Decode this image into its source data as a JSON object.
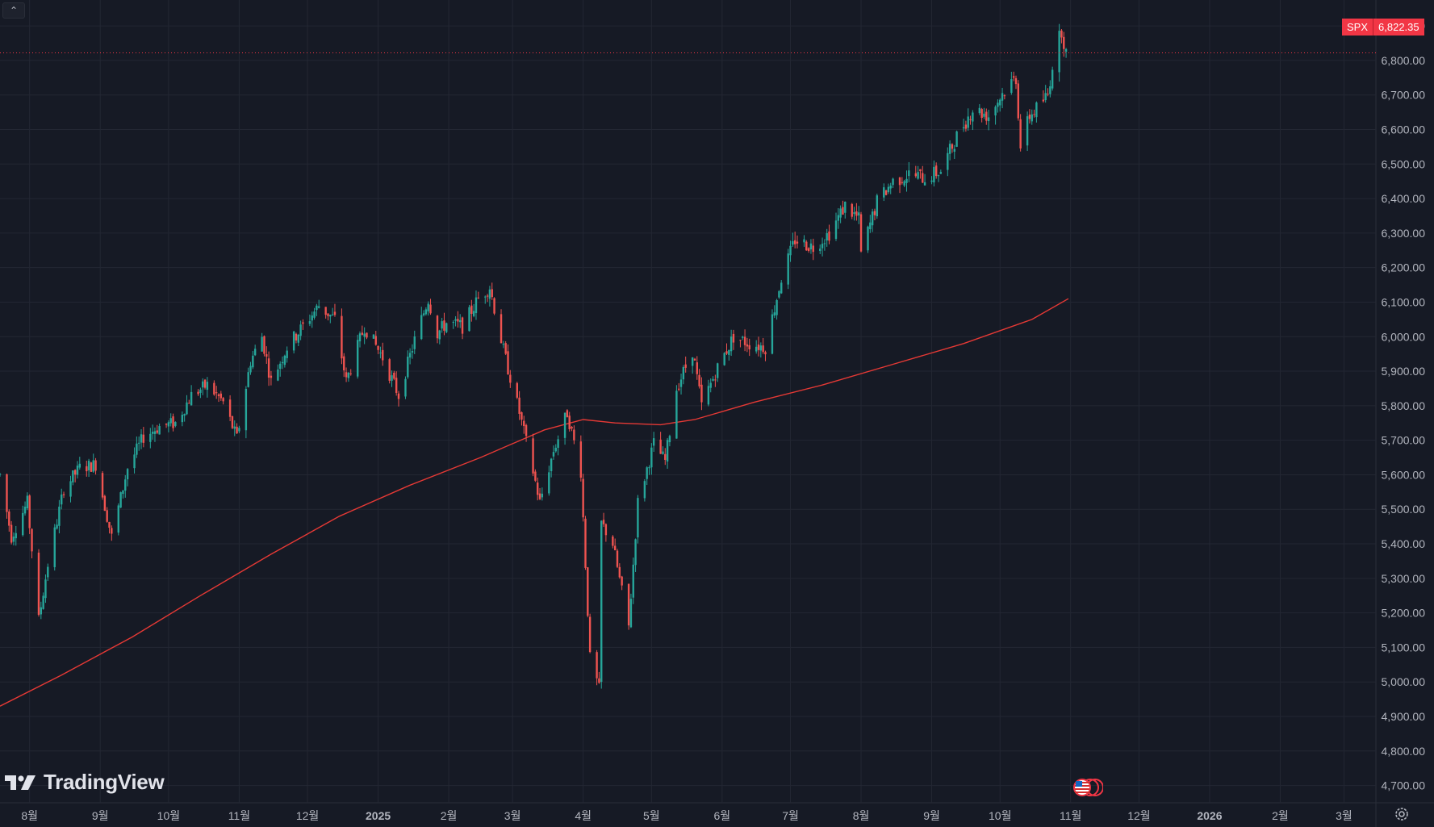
{
  "chart_data": {
    "type": "candlestick",
    "symbol": "SPX",
    "last_price_label": "6,822.35",
    "ylim": [
      4650,
      6975
    ],
    "y_ticks": [
      "4,700.00",
      "4,800.00",
      "4,900.00",
      "5,000.00",
      "5,100.00",
      "5,200.00",
      "5,300.00",
      "5,400.00",
      "5,500.00",
      "5,600.00",
      "5,700.00",
      "5,800.00",
      "5,900.00",
      "6,000.00",
      "6,100.00",
      "6,200.00",
      "6,300.00",
      "6,400.00",
      "6,500.00",
      "6,600.00",
      "6,700.00",
      "6,800.00",
      "6,900.00"
    ],
    "y_tick_values": [
      4700,
      4800,
      4900,
      5000,
      5100,
      5200,
      5300,
      5400,
      5500,
      5600,
      5700,
      5800,
      5900,
      6000,
      6100,
      6200,
      6300,
      6400,
      6500,
      6600,
      6700,
      6800,
      6900
    ],
    "x_ticks": [
      "8월",
      "9월",
      "10월",
      "11월",
      "12월",
      "2025",
      "2월",
      "3월",
      "4월",
      "5월",
      "6월",
      "7월",
      "8월",
      "9월",
      "10월",
      "11월",
      "12월",
      "2026",
      "2월",
      "3월"
    ],
    "x_tick_dates": [
      "2024-08-01",
      "2024-09-01",
      "2024-10-01",
      "2024-11-01",
      "2024-12-01",
      "2025-01-01",
      "2025-02-01",
      "2025-03-01",
      "2025-04-01",
      "2025-05-01",
      "2025-06-01",
      "2025-07-01",
      "2025-08-01",
      "2025-09-01",
      "2025-10-01",
      "2025-11-01",
      "2025-12-01",
      "2026-01-01",
      "2026-02-01",
      "2026-03-01"
    ],
    "x_tick_bold": [
      "2025",
      "2026"
    ],
    "x_range": [
      "2024-07-19",
      "2026-03-15"
    ],
    "price_trend": [
      [
        "2024-07-19",
        5600
      ],
      [
        "2024-07-24",
        5420
      ],
      [
        "2024-07-31",
        5520
      ],
      [
        "2024-08-05",
        5180
      ],
      [
        "2024-08-09",
        5340
      ],
      [
        "2024-08-16",
        5560
      ],
      [
        "2024-08-23",
        5620
      ],
      [
        "2024-08-30",
        5630
      ],
      [
        "2024-09-06",
        5420
      ],
      [
        "2024-09-13",
        5620
      ],
      [
        "2024-09-20",
        5710
      ],
      [
        "2024-09-27",
        5740
      ],
      [
        "2024-10-04",
        5750
      ],
      [
        "2024-10-11",
        5830
      ],
      [
        "2024-10-18",
        5860
      ],
      [
        "2024-10-25",
        5810
      ],
      [
        "2024-10-31",
        5705
      ],
      [
        "2024-11-06",
        5930
      ],
      [
        "2024-11-11",
        6000
      ],
      [
        "2024-11-15",
        5870
      ],
      [
        "2024-11-22",
        5970
      ],
      [
        "2024-11-29",
        6030
      ],
      [
        "2024-12-06",
        6090
      ],
      [
        "2024-12-13",
        6050
      ],
      [
        "2024-12-18",
        5870
      ],
      [
        "2024-12-26",
        6030
      ],
      [
        "2025-01-03",
        5940
      ],
      [
        "2025-01-10",
        5830
      ],
      [
        "2025-01-17",
        5990
      ],
      [
        "2025-01-23",
        6110
      ],
      [
        "2025-01-27",
        6010
      ],
      [
        "2025-01-31",
        6040
      ],
      [
        "2025-02-07",
        6030
      ],
      [
        "2025-02-14",
        6110
      ],
      [
        "2025-02-19",
        6145
      ],
      [
        "2025-02-25",
        5960
      ],
      [
        "2025-03-04",
        5780
      ],
      [
        "2025-03-10",
        5610
      ],
      [
        "2025-03-13",
        5520
      ],
      [
        "2025-03-19",
        5670
      ],
      [
        "2025-03-25",
        5780
      ],
      [
        "2025-03-31",
        5610
      ],
      [
        "2025-04-04",
        5070
      ],
      [
        "2025-04-08",
        4980
      ],
      [
        "2025-04-09",
        5460
      ],
      [
        "2025-04-14",
        5400
      ],
      [
        "2025-04-21",
        5160
      ],
      [
        "2025-04-25",
        5520
      ],
      [
        "2025-05-02",
        5690
      ],
      [
        "2025-05-07",
        5640
      ],
      [
        "2025-05-12",
        5850
      ],
      [
        "2025-05-19",
        5960
      ],
      [
        "2025-05-23",
        5800
      ],
      [
        "2025-05-30",
        5910
      ],
      [
        "2025-06-06",
        6000
      ],
      [
        "2025-06-13",
        5980
      ],
      [
        "2025-06-20",
        5970
      ],
      [
        "2025-06-27",
        6170
      ],
      [
        "2025-07-03",
        6280
      ],
      [
        "2025-07-11",
        6260
      ],
      [
        "2025-07-18",
        6300
      ],
      [
        "2025-07-25",
        6380
      ],
      [
        "2025-07-31",
        6340
      ],
      [
        "2025-08-01",
        6240
      ],
      [
        "2025-08-08",
        6390
      ],
      [
        "2025-08-15",
        6450
      ],
      [
        "2025-08-22",
        6470
      ],
      [
        "2025-08-29",
        6460
      ],
      [
        "2025-09-05",
        6480
      ],
      [
        "2025-09-12",
        6580
      ],
      [
        "2025-09-19",
        6660
      ],
      [
        "2025-09-26",
        6640
      ],
      [
        "2025-10-03",
        6715
      ],
      [
        "2025-10-08",
        6750
      ],
      [
        "2025-10-10",
        6550
      ],
      [
        "2025-10-14",
        6640
      ],
      [
        "2025-10-17",
        6660
      ],
      [
        "2025-10-22",
        6700
      ],
      [
        "2025-10-24",
        6790
      ],
      [
        "2025-10-28",
        6890
      ],
      [
        "2025-10-30",
        6822
      ]
    ],
    "ma_line": [
      [
        "2024-07-19",
        4930
      ],
      [
        "2024-08-15",
        5020
      ],
      [
        "2024-09-15",
        5130
      ],
      [
        "2024-10-15",
        5250
      ],
      [
        "2024-11-15",
        5370
      ],
      [
        "2024-12-15",
        5480
      ],
      [
        "2025-01-15",
        5570
      ],
      [
        "2025-02-15",
        5650
      ],
      [
        "2025-03-15",
        5730
      ],
      [
        "2025-04-01",
        5760
      ],
      [
        "2025-04-15",
        5750
      ],
      [
        "2025-05-05",
        5745
      ],
      [
        "2025-05-20",
        5760
      ],
      [
        "2025-06-15",
        5810
      ],
      [
        "2025-07-15",
        5860
      ],
      [
        "2025-08-15",
        5920
      ],
      [
        "2025-09-15",
        5980
      ],
      [
        "2025-10-15",
        6050
      ],
      [
        "2025-10-31",
        6110
      ]
    ]
  },
  "branding": {
    "logo_text": "TradingView"
  },
  "controls": {
    "collapse_glyph": "⌃"
  },
  "colors": {
    "up": "#26a69a",
    "down": "#ef5350",
    "ma": "#e53935",
    "background": "#161a25",
    "grid": "#232733"
  },
  "icons": [
    "chevron-up-icon",
    "us-flag-icon",
    "gear-icon"
  ]
}
